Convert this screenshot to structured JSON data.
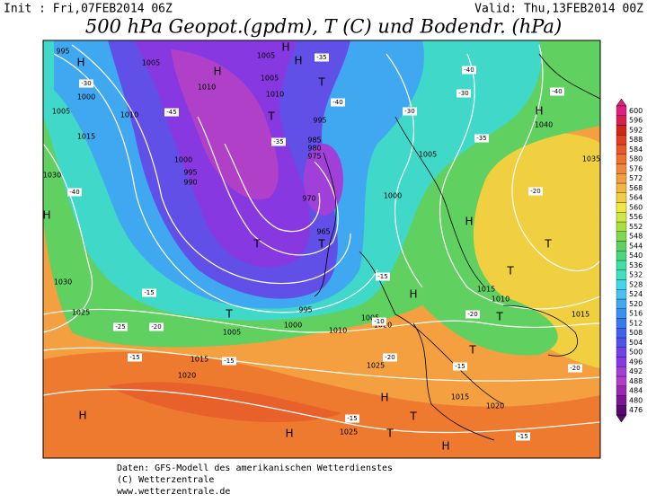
{
  "header": {
    "init": "Init : Fri,07FEB2014 06Z",
    "valid": "Valid: Thu,13FEB2014 00Z",
    "title": "500 hPa Geopot.(gpdm), T (C) und Bodendr. (hPa)"
  },
  "map": {
    "isobar_labels": [
      "995",
      "1005",
      "1005",
      "1010",
      "1000",
      "1005",
      "1010",
      "1015",
      "1005",
      "1010",
      "995",
      "985",
      "980",
      "975",
      "1000",
      "995",
      "990",
      "970",
      "965",
      "995",
      "1000",
      "1005",
      "1010",
      "1000",
      "1005",
      "1030",
      "1030",
      "1025",
      "1040",
      "1035",
      "1015",
      "1010",
      "1015",
      "1020",
      "1020",
      "1015",
      "1025",
      "1015",
      "1020",
      "1025",
      "1005"
    ],
    "temperature_labels": [
      "-30",
      "-45",
      "-40",
      "-35",
      "-35",
      "-40",
      "-40",
      "-30",
      "-30",
      "-35",
      "-40",
      "-20",
      "-15",
      "-25",
      "-20",
      "-15",
      "-10",
      "-15",
      "-20",
      "-15",
      "-15",
      "-20",
      "-15",
      "-20",
      "-15"
    ],
    "pressure_centers": [
      "H",
      "H",
      "T",
      "H",
      "T",
      "H",
      "H",
      "T",
      "T",
      "H",
      "T",
      "T",
      "H",
      "T",
      "H",
      "H",
      "H",
      "T",
      "T",
      "H",
      "T",
      "H",
      "T"
    ]
  },
  "colorbar": {
    "values": [
      476,
      480,
      484,
      488,
      492,
      496,
      500,
      504,
      508,
      512,
      516,
      520,
      524,
      528,
      532,
      536,
      540,
      544,
      548,
      552,
      556,
      560,
      564,
      568,
      572,
      576,
      580,
      584,
      588,
      592,
      596,
      600
    ],
    "colors": [
      "#5a0a6e",
      "#7a1890",
      "#9a28b0",
      "#b040c8",
      "#a040d8",
      "#8838e0",
      "#7040e8",
      "#5050f0",
      "#4060f0",
      "#3878f0",
      "#3890f0",
      "#40a8f0",
      "#48c0f0",
      "#40d8e8",
      "#40e0c0",
      "#40e0a0",
      "#48d880",
      "#60d060",
      "#80d850",
      "#a8e040",
      "#d0e840",
      "#f0e840",
      "#f0d040",
      "#f0b840",
      "#f0a040",
      "#f08838",
      "#f07030",
      "#e85828",
      "#e04020",
      "#d02818",
      "#d82050",
      "#e02080"
    ]
  },
  "footer": [
    "Daten: GFS-Modell des amerikanischen Wetterdienstes",
    "(C) Wetterzentrale",
    "www.wetterzentrale.de"
  ]
}
